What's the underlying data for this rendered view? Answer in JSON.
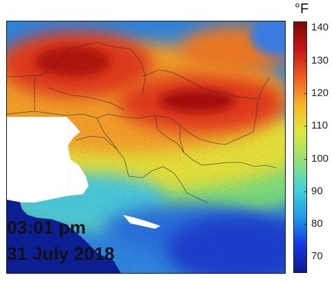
{
  "map": {
    "time": "03:01 pm",
    "date": "31 July 2018"
  },
  "colorbar": {
    "unit": "°F",
    "min": 65,
    "max": 142,
    "ticks": [
      "140",
      "130",
      "120",
      "110",
      "100",
      "90",
      "80",
      "70"
    ],
    "colors": [
      "#0a1a8f",
      "#1238e6",
      "#1f9ae8",
      "#3fd2d8",
      "#8fe07a",
      "#dfe83a",
      "#f7b526",
      "#ef5a1f",
      "#c71515",
      "#7e0808"
    ]
  }
}
